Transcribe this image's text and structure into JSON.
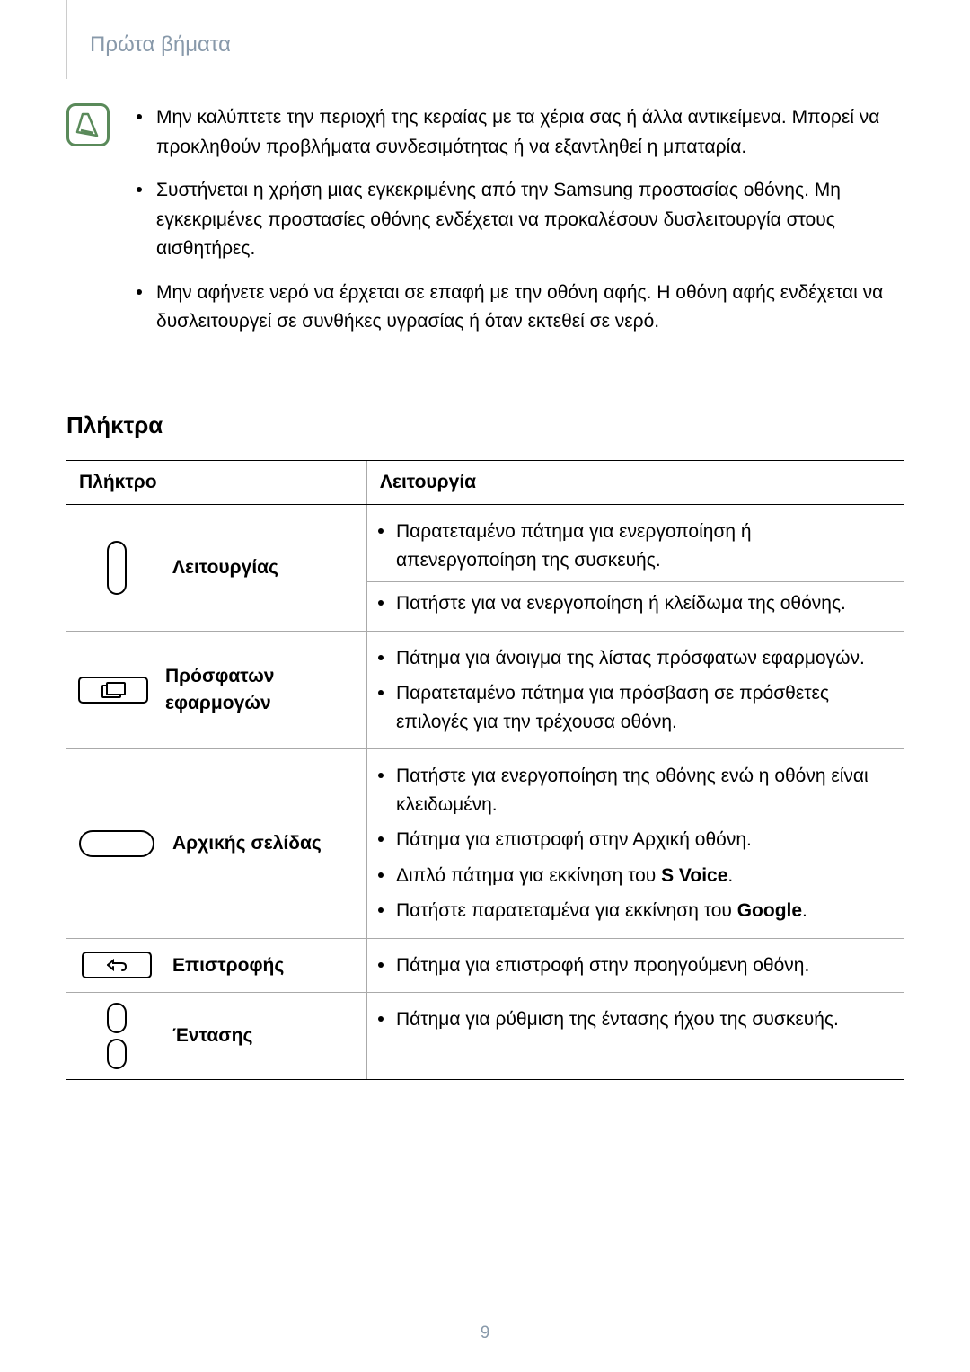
{
  "header": "Πρώτα βήματα",
  "notes": [
    "Μην καλύπτετε την περιοχή της κεραίας με τα χέρια σας ή άλλα αντικείμενα. Μπορεί να προκληθούν προβλήματα συνδεσιμότητας ή να εξαντληθεί η μπαταρία.",
    "Συστήνεται η χρήση μιας εγκεκριμένης από την Samsung προστασίας οθόνης. Μη εγκεκριμένες προστασίες οθόνης ενδέχεται να προκαλέσουν δυσλειτουργία στους αισθητήρες.",
    "Μην αφήνετε νερό να έρχεται σε επαφή με την οθόνη αφής. Η οθόνη αφής ενδέχεται να δυσλειτουργεί σε συνθήκες υγρασίας ή όταν εκτεθεί σε νερό."
  ],
  "section_heading": "Πλήκτρα",
  "table": {
    "header_key": "Πλήκτρο",
    "header_fn": "Λειτουργία",
    "rows": [
      {
        "label": "Λειτουργίας",
        "fns": [
          "Παρατεταμένο πάτημα για ενεργοποίηση ή απενεργοποίηση της συσκευής.",
          "Πατήστε για να ενεργοποίηση ή κλείδωμα της οθόνης."
        ],
        "split": true
      },
      {
        "label": "Πρόσφατων εφαρμογών",
        "fns": [
          "Πάτημα για άνοιγμα της λίστας πρόσφατων εφαρμογών.",
          "Παρατεταμένο πάτημα για πρόσβαση σε πρόσθετες επιλογές για την τρέχουσα οθόνη."
        ]
      },
      {
        "label": "Αρχικής σελίδας",
        "fns_html": [
          "Πατήστε για ενεργοποίηση της οθόνης ενώ η οθόνη είναι κλειδωμένη.",
          "Πάτημα για επιστροφή στην Αρχική οθόνη.",
          "Διπλό πάτημα για εκκίνηση του <b>S Voice</b>.",
          "Πατήστε παρατεταμένα για εκκίνηση του <b>Google</b>."
        ]
      },
      {
        "label": "Επιστροφής",
        "fns": [
          "Πάτημα για επιστροφή στην προηγούμενη οθόνη."
        ]
      },
      {
        "label": "Έντασης",
        "fns": [
          "Πάτημα για ρύθμιση της έντασης ήχου της συσκευής."
        ]
      }
    ]
  },
  "page_number": "9",
  "colors": {
    "header_text": "#8899aa",
    "note_icon_border": "#5a8a5a",
    "border": "#000000",
    "inner_border": "#aaaaaa"
  }
}
